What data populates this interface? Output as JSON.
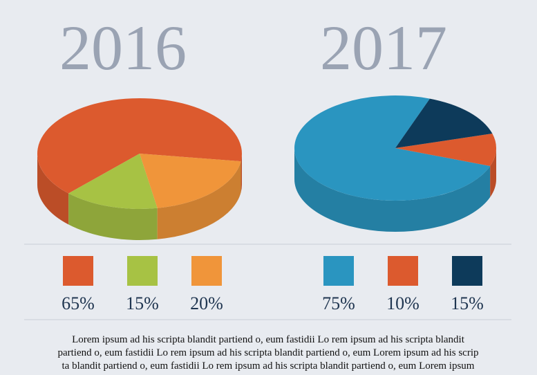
{
  "chart_data": [
    {
      "type": "pie",
      "title": "2016",
      "values": [
        65,
        15,
        20
      ],
      "value_labels": [
        "65%",
        "15%",
        "20%"
      ],
      "colors": [
        "#dc5a2e",
        "#a7c244",
        "#f0953a"
      ]
    },
    {
      "type": "pie",
      "title": "2017",
      "values": [
        75,
        10,
        15
      ],
      "value_labels": [
        "75%",
        "10%",
        "15%"
      ],
      "colors": [
        "#2a95c0",
        "#dc5a2e",
        "#0d3a5a"
      ]
    }
  ],
  "footer_text": [
    "Lorem ipsum ad his scripta blandit partiend    o, eum  fastidii Lo rem ipsum ad his scripta blandit",
    "partiend  o, eum fastidii Lo rem ipsum ad his scripta blandit partiend    o, eum Lorem ipsum ad his scrip",
    "ta blandit partiend o, eum  fastidii Lo rem ipsum ad his scripta blandit partiend o, eum Lorem ipsum"
  ]
}
